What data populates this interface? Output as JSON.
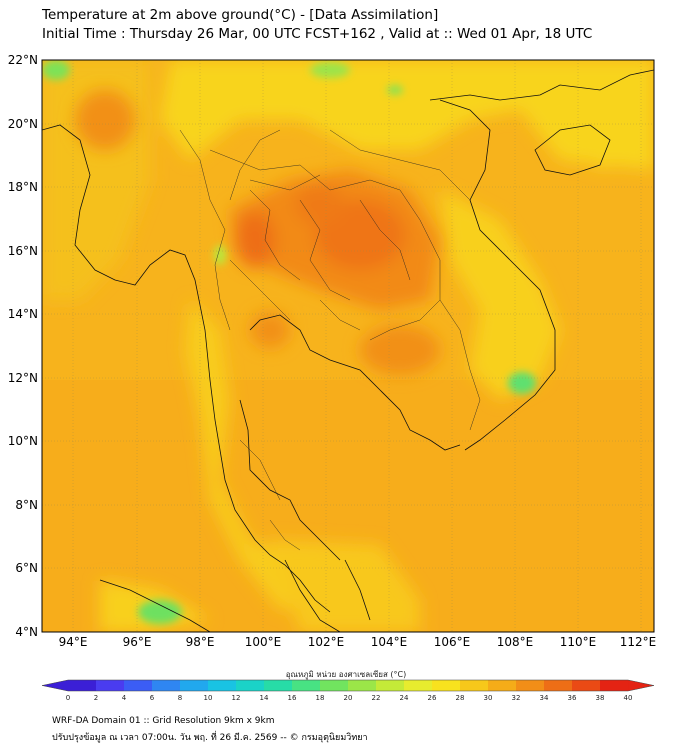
{
  "title_line1": "Temperature at 2m above ground(°C) - [Data Assimilation]",
  "title_line2": "Initial Time : Thursday 26 Mar, 00 UTC FCST+162 , Valid at :: Wed 01 Apr, 18 UTC",
  "axes": {
    "lon_labels": [
      "94°E",
      "96°E",
      "98°E",
      "100°E",
      "102°E",
      "104°E",
      "106°E",
      "108°E",
      "110°E",
      "112°E"
    ],
    "lat_labels": [
      "22°N",
      "20°N",
      "18°N",
      "16°N",
      "14°N",
      "12°N",
      "10°N",
      "8°N",
      "6°N",
      "4°N"
    ]
  },
  "colorbar": {
    "title": "อุณหภูมิ หน่วย องศาเซลเซียส (°C)",
    "tick_labels": [
      "0",
      "2",
      "4",
      "6",
      "8",
      "10",
      "12",
      "14",
      "16",
      "18",
      "20",
      "22",
      "24",
      "26",
      "28",
      "30",
      "32",
      "34",
      "36",
      "38",
      "40"
    ],
    "colors": [
      "#3b1fd6",
      "#4a3cf0",
      "#3b5df5",
      "#2f86f2",
      "#21a8ee",
      "#19c3e3",
      "#1ad3c8",
      "#27dca7",
      "#48e283",
      "#71e45f",
      "#9be648",
      "#c4ea38",
      "#e7ec2e",
      "#f8e21e",
      "#f7c81a",
      "#f5ac18",
      "#f28e17",
      "#ee6e16",
      "#ea4a15",
      "#e42313"
    ]
  },
  "footer_line1": "WRF-DA Domain 01 :: Grid Resolution 9km x 9km",
  "footer_line2": "ปรับปรุงข้อมูล ณ เวลา 07:00น. วัน พฤ. ที่ 26 มี.ค. 2569 -- © กรมอุตุนิยมวิทยา"
}
